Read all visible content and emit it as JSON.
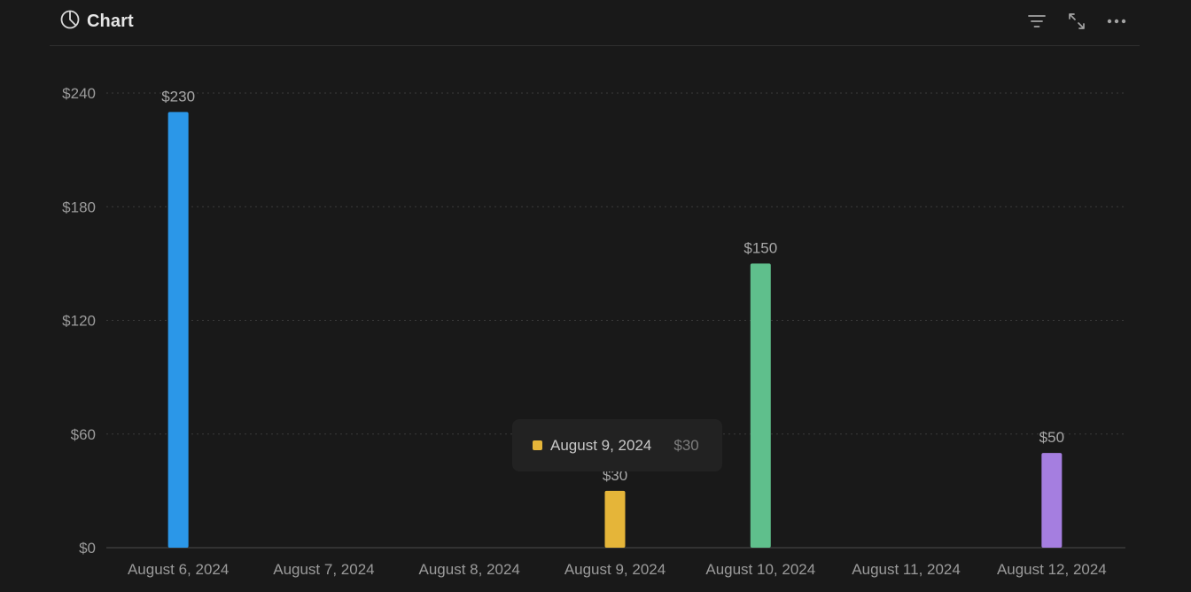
{
  "header": {
    "title": "Chart",
    "title_icon": "pie-chart-icon",
    "actions": [
      {
        "name": "filter-icon",
        "label": "Filter"
      },
      {
        "name": "expand-icon",
        "label": "Expand"
      },
      {
        "name": "more-icon",
        "label": "More"
      }
    ]
  },
  "chart_data": {
    "type": "bar",
    "title": "",
    "xlabel": "",
    "ylabel": "",
    "categories": [
      "August 6, 2024",
      "August 7, 2024",
      "August 8, 2024",
      "August 9, 2024",
      "August 10, 2024",
      "August 11, 2024",
      "August 12, 2024"
    ],
    "values": [
      230,
      null,
      null,
      30,
      150,
      null,
      50
    ],
    "value_labels": [
      "$230",
      "",
      "",
      "$30",
      "$150",
      "",
      "$50"
    ],
    "colors": [
      "#2b97e8",
      null,
      null,
      "#e5b539",
      "#5fbf8c",
      null,
      "#a57ee0"
    ],
    "ylim": [
      0,
      240
    ],
    "yticks": [
      0,
      60,
      120,
      180,
      240
    ],
    "ytick_labels": [
      "$0",
      "$60",
      "$120",
      "$180",
      "$240"
    ],
    "grid": true,
    "legend": "none"
  },
  "tooltip": {
    "date": "August 9, 2024",
    "value": "$30",
    "color": "#e5b539"
  }
}
